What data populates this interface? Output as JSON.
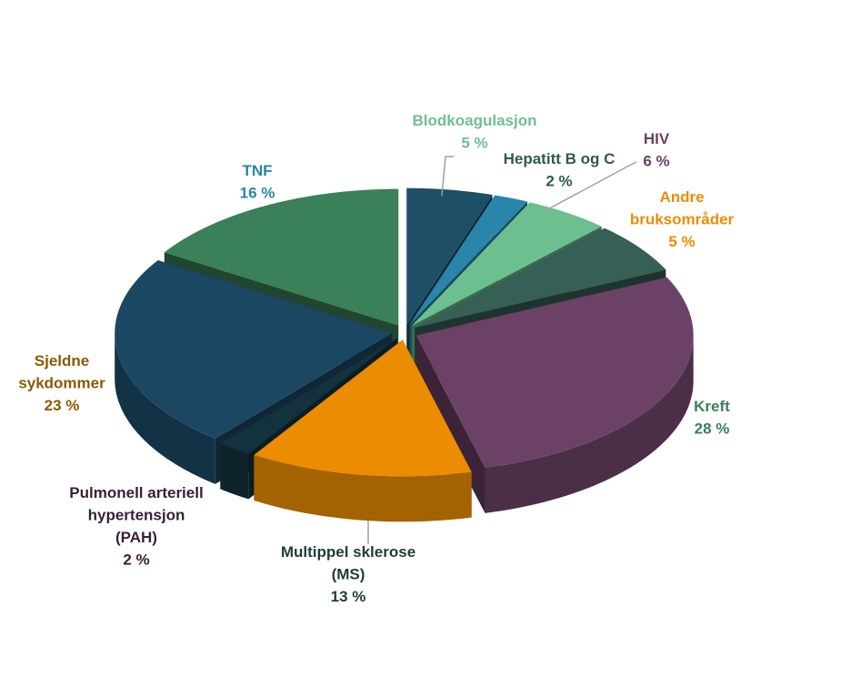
{
  "chart_data": {
    "type": "pie3d",
    "categories": [
      "Andre bruksområder",
      "Hepatitt B og C",
      "Blodkoagulasjon",
      "HIV",
      "Kreft",
      "Multippel sklerose (MS)",
      "Pulmonell arteriell hypertensjon (PAH)",
      "Sjeldne sykdommer",
      "TNF"
    ],
    "values": [
      5,
      2,
      5,
      6,
      28,
      13,
      2,
      23,
      16
    ],
    "value_labels": [
      "5 %",
      "2 %",
      "5 %",
      "6 %",
      "28 %",
      "13 %",
      "2 %",
      "23 %",
      "16 %"
    ],
    "colors": [
      "#1d4f66",
      "#2a85aa",
      "#6cc08f",
      "#365f55",
      "#6b4265",
      "#ec8c00",
      "#14323e",
      "#1b4763",
      "#3a8058"
    ],
    "label_colors": [
      "#ec8c00",
      "#2e5a4f",
      "#6fbf8f",
      "#6b4265",
      "#3a8058",
      "#1f3d3a",
      "#3a2038",
      "#8a5a00",
      "#2a85aa"
    ]
  }
}
